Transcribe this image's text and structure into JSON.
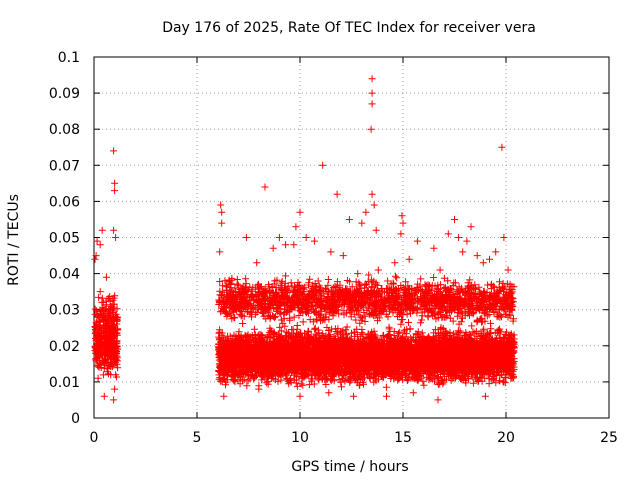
{
  "chart_data": {
    "type": "scatter",
    "title": "Day 176 of 2025, Rate Of TEC Index for receiver vera",
    "xlabel": "GPS time / hours",
    "ylabel": "ROTI / TECUs",
    "xlim": [
      0,
      25
    ],
    "ylim": [
      0,
      0.1
    ],
    "xticks": [
      0,
      5,
      10,
      15,
      20,
      25
    ],
    "xtick_labels": [
      "0",
      "5",
      "10",
      "15",
      "20",
      "25"
    ],
    "yticks": [
      0,
      0.01,
      0.02,
      0.03,
      0.04,
      0.05,
      0.06,
      0.07,
      0.08,
      0.09,
      0.1
    ],
    "ytick_labels": [
      "0",
      "0.01",
      "0.02",
      "0.03",
      "0.04",
      "0.05",
      "0.06",
      "0.07",
      "0.08",
      "0.09",
      "0.1"
    ],
    "grid": true,
    "marker": "plus",
    "color": "#ff0000",
    "series": [
      {
        "points": [
          [
            0.05,
            0.044
          ],
          [
            0.1,
            0.045
          ],
          [
            0.15,
            0.049
          ],
          [
            0.3,
            0.048
          ],
          [
            0.4,
            0.052
          ],
          [
            0.6,
            0.039
          ],
          [
            0.95,
            0.074
          ],
          [
            1.0,
            0.065
          ],
          [
            1.0,
            0.063
          ],
          [
            0.95,
            0.052
          ],
          [
            1.05,
            0.05
          ],
          [
            0.95,
            0.005
          ],
          [
            1.0,
            0.008
          ],
          [
            0.5,
            0.006
          ],
          [
            0.2,
            0.011
          ],
          [
            0.3,
            0.035
          ],
          [
            0.7,
            0.033
          ],
          [
            0.8,
            0.028
          ],
          [
            0.45,
            0.032
          ],
          [
            0.25,
            0.025
          ],
          [
            0.55,
            0.022
          ],
          [
            0.85,
            0.015
          ],
          [
            1.05,
            0.012
          ],
          [
            0.15,
            0.018
          ],
          [
            0.35,
            0.014
          ],
          [
            6.15,
            0.059
          ],
          [
            6.2,
            0.057
          ],
          [
            6.2,
            0.054
          ],
          [
            6.1,
            0.046
          ],
          [
            6.3,
            0.006
          ],
          [
            7.4,
            0.05
          ],
          [
            7.9,
            0.043
          ],
          [
            8.3,
            0.064
          ],
          [
            8.7,
            0.047
          ],
          [
            9.0,
            0.05
          ],
          [
            9.3,
            0.048
          ],
          [
            9.7,
            0.048
          ],
          [
            9.8,
            0.053
          ],
          [
            10.0,
            0.057
          ],
          [
            10.0,
            0.006
          ],
          [
            10.3,
            0.05
          ],
          [
            10.7,
            0.049
          ],
          [
            11.1,
            0.07
          ],
          [
            11.5,
            0.046
          ],
          [
            11.8,
            0.062
          ],
          [
            12.1,
            0.045
          ],
          [
            12.4,
            0.055
          ],
          [
            12.6,
            0.006
          ],
          [
            13.0,
            0.054
          ],
          [
            13.2,
            0.057
          ],
          [
            13.5,
            0.094
          ],
          [
            13.5,
            0.09
          ],
          [
            13.5,
            0.087
          ],
          [
            13.45,
            0.08
          ],
          [
            13.5,
            0.062
          ],
          [
            13.6,
            0.059
          ],
          [
            13.7,
            0.052
          ],
          [
            13.8,
            0.041
          ],
          [
            14.2,
            0.006
          ],
          [
            14.6,
            0.043
          ],
          [
            14.9,
            0.051
          ],
          [
            14.95,
            0.056
          ],
          [
            15.0,
            0.054
          ],
          [
            15.3,
            0.044
          ],
          [
            15.7,
            0.049
          ],
          [
            16.1,
            0.035
          ],
          [
            16.5,
            0.047
          ],
          [
            16.7,
            0.005
          ],
          [
            17.2,
            0.051
          ],
          [
            17.5,
            0.055
          ],
          [
            17.7,
            0.05
          ],
          [
            17.9,
            0.046
          ],
          [
            18.1,
            0.049
          ],
          [
            18.3,
            0.053
          ],
          [
            18.6,
            0.045
          ],
          [
            18.9,
            0.043
          ],
          [
            19.2,
            0.044
          ],
          [
            19.5,
            0.046
          ],
          [
            19.8,
            0.075
          ],
          [
            19.9,
            0.05
          ],
          [
            20.1,
            0.041
          ],
          [
            20.2,
            0.037
          ],
          [
            20.3,
            0.011
          ],
          [
            19.0,
            0.006
          ],
          [
            15.5,
            0.007
          ],
          [
            11.4,
            0.007
          ],
          [
            8.0,
            0.008
          ],
          [
            7.0,
            0.012
          ],
          [
            12.8,
            0.04
          ],
          [
            16.8,
            0.041
          ]
        ],
        "clusters": [
          {
            "x_range": [
              0.05,
              1.15
            ],
            "y_range": [
              0.008,
              0.036
            ],
            "count": 420
          },
          {
            "x_range": [
              6.05,
              20.4
            ],
            "y_range": [
              0.008,
              0.026
            ],
            "count": 6200
          },
          {
            "x_range": [
              6.05,
              20.4
            ],
            "y_range": [
              0.025,
              0.04
            ],
            "count": 1800
          }
        ]
      }
    ]
  }
}
